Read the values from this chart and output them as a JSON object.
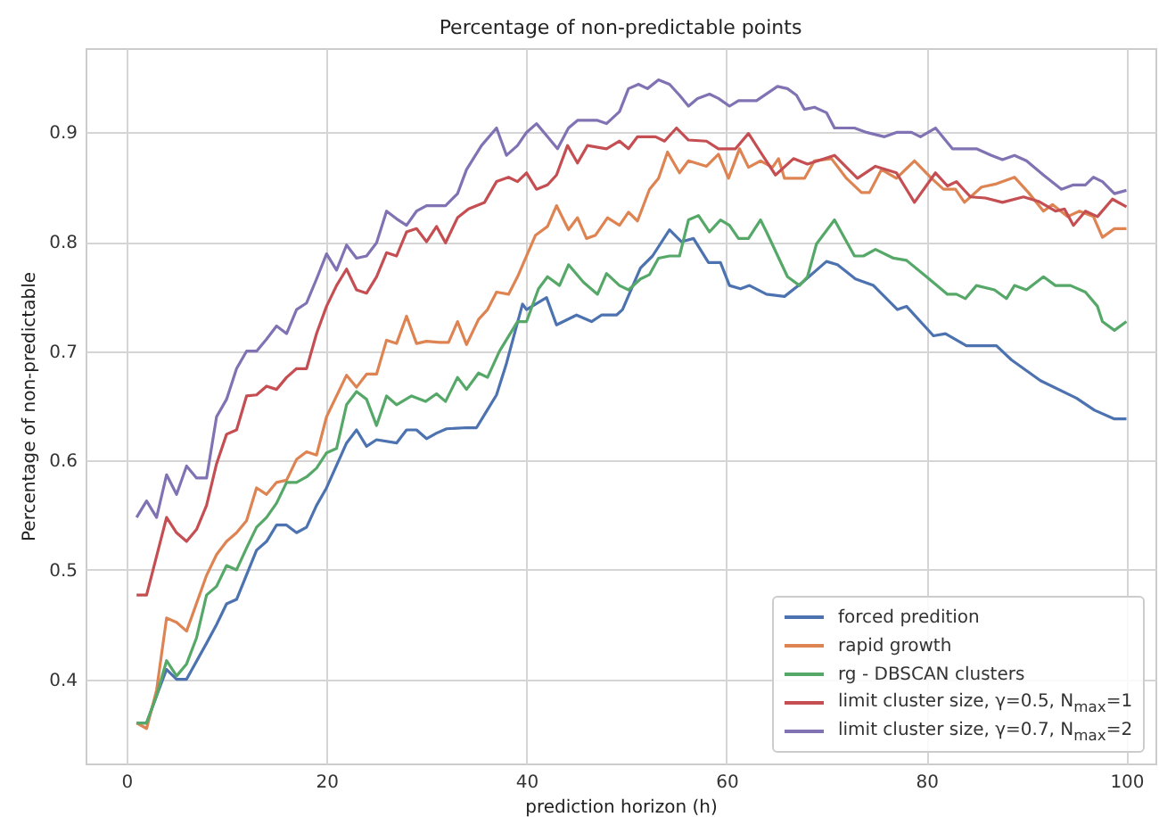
{
  "chart_data": {
    "type": "line",
    "title": "Percentage of non-predictable points",
    "xlabel": "prediction horizon (h)",
    "ylabel": "Percentage of non-predictable",
    "xlim": [
      -4.1,
      102.9
    ],
    "xticks": [
      0,
      20,
      40,
      60,
      80,
      100
    ],
    "ylim": [
      0.323,
      0.977
    ],
    "yticks": [
      0.4,
      0.5,
      0.6,
      0.7,
      0.8,
      0.9
    ],
    "grid": true,
    "legend": "bottom right",
    "series": [
      {
        "name": "forced predition",
        "color": "#4c72b0",
        "x": [
          1,
          2,
          3,
          4,
          5,
          6,
          8,
          9,
          10,
          11,
          13,
          14,
          15,
          16,
          17,
          18,
          19,
          20,
          22,
          23,
          24,
          25,
          27,
          28,
          29,
          30,
          31,
          32,
          34,
          35,
          36,
          37,
          38,
          39.6,
          40,
          42,
          43,
          45,
          46.5,
          47.5,
          49,
          49.6,
          51.4,
          52.6,
          54.3,
          55.5,
          56.7,
          58.2,
          59.4,
          60.3,
          61.4,
          62.3,
          64,
          65.8,
          67.6,
          70,
          71.1,
          72.9,
          74.7,
          77.1,
          78,
          80.7,
          81.9,
          84,
          87,
          88.5,
          91.4,
          95,
          96.8,
          98.8,
          100
        ],
        "values": [
          0.36,
          0.36,
          0.385,
          0.409,
          0.4,
          0.4,
          0.433,
          0.45,
          0.469,
          0.473,
          0.518,
          0.526,
          0.541,
          0.541,
          0.534,
          0.539,
          0.559,
          0.575,
          0.616,
          0.628,
          0.613,
          0.619,
          0.616,
          0.628,
          0.628,
          0.62,
          0.625,
          0.629,
          0.63,
          0.63,
          0.645,
          0.66,
          0.689,
          0.743,
          0.738,
          0.749,
          0.724,
          0.733,
          0.727,
          0.733,
          0.733,
          0.738,
          0.776,
          0.787,
          0.811,
          0.8,
          0.803,
          0.781,
          0.781,
          0.76,
          0.757,
          0.76,
          0.752,
          0.75,
          0.763,
          0.782,
          0.779,
          0.766,
          0.76,
          0.738,
          0.741,
          0.714,
          0.716,
          0.705,
          0.705,
          0.692,
          0.673,
          0.657,
          0.646,
          0.638,
          0.638
        ]
      },
      {
        "name": "rapid growth",
        "color": "#dd8452",
        "x": [
          1,
          2,
          3,
          4,
          5,
          6,
          8,
          9,
          10,
          11,
          12,
          13,
          14,
          15,
          16,
          17,
          18,
          19,
          20,
          22,
          23,
          24,
          25,
          26,
          27,
          28,
          29,
          30,
          31.3,
          32.2,
          33.1,
          34,
          35.2,
          36.1,
          37,
          38.2,
          39.1,
          40.9,
          42.1,
          43,
          44.2,
          45.1,
          46,
          46.9,
          48.1,
          49.3,
          50.2,
          51.1,
          52.3,
          53.2,
          54.1,
          55.3,
          56.2,
          58,
          59.2,
          60.2,
          61.3,
          62.2,
          63.4,
          64.6,
          65.2,
          65.8,
          67.8,
          68.8,
          70.5,
          72,
          73.5,
          74.3,
          75.5,
          77,
          78.8,
          80.5,
          81.7,
          82.9,
          83.8,
          85.5,
          87,
          88.8,
          90.2,
          91.7,
          92.6,
          94.1,
          95.3,
          96.7,
          97.6,
          98.8,
          100
        ],
        "values": [
          0.36,
          0.355,
          0.39,
          0.456,
          0.452,
          0.444,
          0.495,
          0.514,
          0.526,
          0.534,
          0.545,
          0.575,
          0.569,
          0.58,
          0.582,
          0.601,
          0.608,
          0.605,
          0.64,
          0.678,
          0.667,
          0.679,
          0.679,
          0.71,
          0.707,
          0.732,
          0.707,
          0.709,
          0.708,
          0.708,
          0.727,
          0.706,
          0.729,
          0.738,
          0.754,
          0.752,
          0.768,
          0.806,
          0.814,
          0.833,
          0.811,
          0.822,
          0.803,
          0.806,
          0.822,
          0.815,
          0.827,
          0.819,
          0.848,
          0.858,
          0.882,
          0.863,
          0.874,
          0.869,
          0.88,
          0.858,
          0.885,
          0.868,
          0.874,
          0.868,
          0.876,
          0.858,
          0.858,
          0.874,
          0.876,
          0.858,
          0.845,
          0.845,
          0.866,
          0.858,
          0.874,
          0.858,
          0.848,
          0.848,
          0.836,
          0.85,
          0.853,
          0.859,
          0.845,
          0.828,
          0.834,
          0.823,
          0.828,
          0.823,
          0.804,
          0.812,
          0.812
        ]
      },
      {
        "name": "rg - DBSCAN clusters",
        "color": "#55a868",
        "x": [
          1,
          2,
          3,
          4,
          5,
          6,
          7,
          8,
          9,
          10,
          11,
          12,
          13,
          14,
          15,
          16,
          17,
          18,
          19,
          20,
          21,
          22,
          23,
          24,
          25,
          26,
          27,
          28.5,
          29.9,
          31,
          31.9,
          33.1,
          34,
          35.2,
          36.1,
          37.3,
          39.1,
          40,
          41.2,
          42.1,
          43.3,
          44.2,
          45.7,
          47.1,
          48,
          49.3,
          50.2,
          51.4,
          52.3,
          53.2,
          54.3,
          55.3,
          56.2,
          57.2,
          58.3,
          59.4,
          60.3,
          61.2,
          62.2,
          63.4,
          64,
          66.1,
          67.3,
          68.1,
          69,
          70.8,
          72.8,
          73.7,
          74.9,
          76.7,
          78,
          80,
          82.1,
          83,
          83.9,
          85,
          86.8,
          88,
          88.8,
          90,
          91.7,
          92.9,
          94.4,
          95.9,
          97.1,
          97.6,
          98.8,
          100
        ],
        "values": [
          0.36,
          0.36,
          0.385,
          0.417,
          0.403,
          0.414,
          0.438,
          0.477,
          0.485,
          0.504,
          0.5,
          0.52,
          0.539,
          0.548,
          0.561,
          0.58,
          0.58,
          0.585,
          0.593,
          0.607,
          0.611,
          0.651,
          0.663,
          0.656,
          0.632,
          0.659,
          0.651,
          0.659,
          0.654,
          0.661,
          0.654,
          0.676,
          0.665,
          0.68,
          0.676,
          0.7,
          0.727,
          0.727,
          0.757,
          0.768,
          0.76,
          0.779,
          0.763,
          0.752,
          0.771,
          0.76,
          0.756,
          0.766,
          0.77,
          0.785,
          0.787,
          0.787,
          0.82,
          0.824,
          0.809,
          0.82,
          0.815,
          0.803,
          0.803,
          0.82,
          0.809,
          0.768,
          0.76,
          0.768,
          0.798,
          0.82,
          0.787,
          0.787,
          0.793,
          0.785,
          0.783,
          0.768,
          0.752,
          0.752,
          0.748,
          0.76,
          0.756,
          0.748,
          0.76,
          0.756,
          0.768,
          0.76,
          0.76,
          0.754,
          0.741,
          0.727,
          0.719,
          0.727
        ]
      },
      {
        "name": "limit cluster size, γ=0.5, N$_{max}$=1",
        "color": "#c44e52",
        "x": [
          1,
          2,
          4,
          5,
          6,
          7,
          8,
          9,
          10,
          11,
          12,
          13,
          14,
          15,
          16,
          17,
          18,
          19,
          20,
          21,
          22,
          23,
          24,
          25,
          26,
          27,
          28,
          29,
          30,
          31,
          31.9,
          33.1,
          34.2,
          35.8,
          37,
          38.2,
          39.1,
          40,
          41,
          42.1,
          43,
          44.1,
          45.1,
          46.1,
          48,
          49.3,
          50.2,
          51.1,
          52.9,
          53.8,
          55,
          56.2,
          58,
          59.2,
          60.9,
          62.2,
          63.4,
          64.9,
          66.7,
          68.1,
          70.8,
          73.1,
          74.9,
          77,
          78.8,
          80.9,
          82.1,
          83,
          84.4,
          85.9,
          87.6,
          89.7,
          91.2,
          92.9,
          93.8,
          94.7,
          95.9,
          97.1,
          98.6,
          100
        ],
        "values": [
          0.477,
          0.477,
          0.548,
          0.534,
          0.526,
          0.537,
          0.559,
          0.597,
          0.624,
          0.628,
          0.659,
          0.66,
          0.668,
          0.665,
          0.676,
          0.684,
          0.684,
          0.716,
          0.741,
          0.76,
          0.775,
          0.756,
          0.753,
          0.768,
          0.79,
          0.787,
          0.809,
          0.812,
          0.8,
          0.814,
          0.799,
          0.822,
          0.83,
          0.836,
          0.855,
          0.859,
          0.855,
          0.863,
          0.848,
          0.852,
          0.861,
          0.888,
          0.872,
          0.888,
          0.885,
          0.892,
          0.885,
          0.896,
          0.896,
          0.892,
          0.904,
          0.893,
          0.892,
          0.885,
          0.885,
          0.899,
          0.882,
          0.861,
          0.876,
          0.871,
          0.879,
          0.858,
          0.869,
          0.863,
          0.836,
          0.863,
          0.851,
          0.855,
          0.841,
          0.84,
          0.836,
          0.841,
          0.837,
          0.828,
          0.83,
          0.815,
          0.828,
          0.823,
          0.839,
          0.832
        ]
      },
      {
        "name": "limit cluster size, γ=0.7, N$_{max}$=2",
        "color": "#8172b3",
        "x": [
          1,
          2,
          3,
          4,
          5,
          6,
          7,
          8,
          9,
          10,
          11,
          12,
          13,
          14,
          15,
          16,
          17,
          18,
          19,
          20,
          21,
          22,
          23,
          24,
          25,
          26,
          27,
          28,
          29,
          30,
          31.9,
          33.1,
          34,
          35.5,
          37,
          38,
          39.1,
          40,
          41,
          42.1,
          43.1,
          44.2,
          45.1,
          47.1,
          48,
          49.3,
          50.2,
          51.2,
          52.1,
          53.2,
          54.3,
          55.3,
          56.2,
          57.1,
          58.3,
          59.2,
          60.3,
          61.2,
          63,
          65.1,
          66.1,
          67,
          67.8,
          68.8,
          70,
          70.8,
          72.8,
          74,
          75.8,
          77,
          78.5,
          79.4,
          80.9,
          82.6,
          85,
          86.5,
          87.6,
          88.8,
          90,
          91.7,
          93.5,
          94.7,
          95.9,
          96.7,
          97.6,
          98.8,
          100
        ],
        "values": [
          0.548,
          0.563,
          0.548,
          0.587,
          0.569,
          0.595,
          0.584,
          0.584,
          0.64,
          0.656,
          0.684,
          0.7,
          0.7,
          0.711,
          0.723,
          0.716,
          0.738,
          0.744,
          0.766,
          0.789,
          0.774,
          0.797,
          0.785,
          0.787,
          0.799,
          0.828,
          0.821,
          0.815,
          0.828,
          0.833,
          0.833,
          0.844,
          0.866,
          0.888,
          0.904,
          0.879,
          0.888,
          0.9,
          0.908,
          0.896,
          0.885,
          0.904,
          0.911,
          0.911,
          0.908,
          0.919,
          0.94,
          0.944,
          0.94,
          0.948,
          0.944,
          0.934,
          0.924,
          0.931,
          0.935,
          0.931,
          0.924,
          0.929,
          0.929,
          0.942,
          0.94,
          0.934,
          0.921,
          0.923,
          0.918,
          0.904,
          0.904,
          0.9,
          0.896,
          0.9,
          0.9,
          0.896,
          0.904,
          0.885,
          0.885,
          0.879,
          0.875,
          0.879,
          0.874,
          0.861,
          0.848,
          0.852,
          0.852,
          0.859,
          0.855,
          0.844,
          0.847
        ]
      }
    ]
  }
}
